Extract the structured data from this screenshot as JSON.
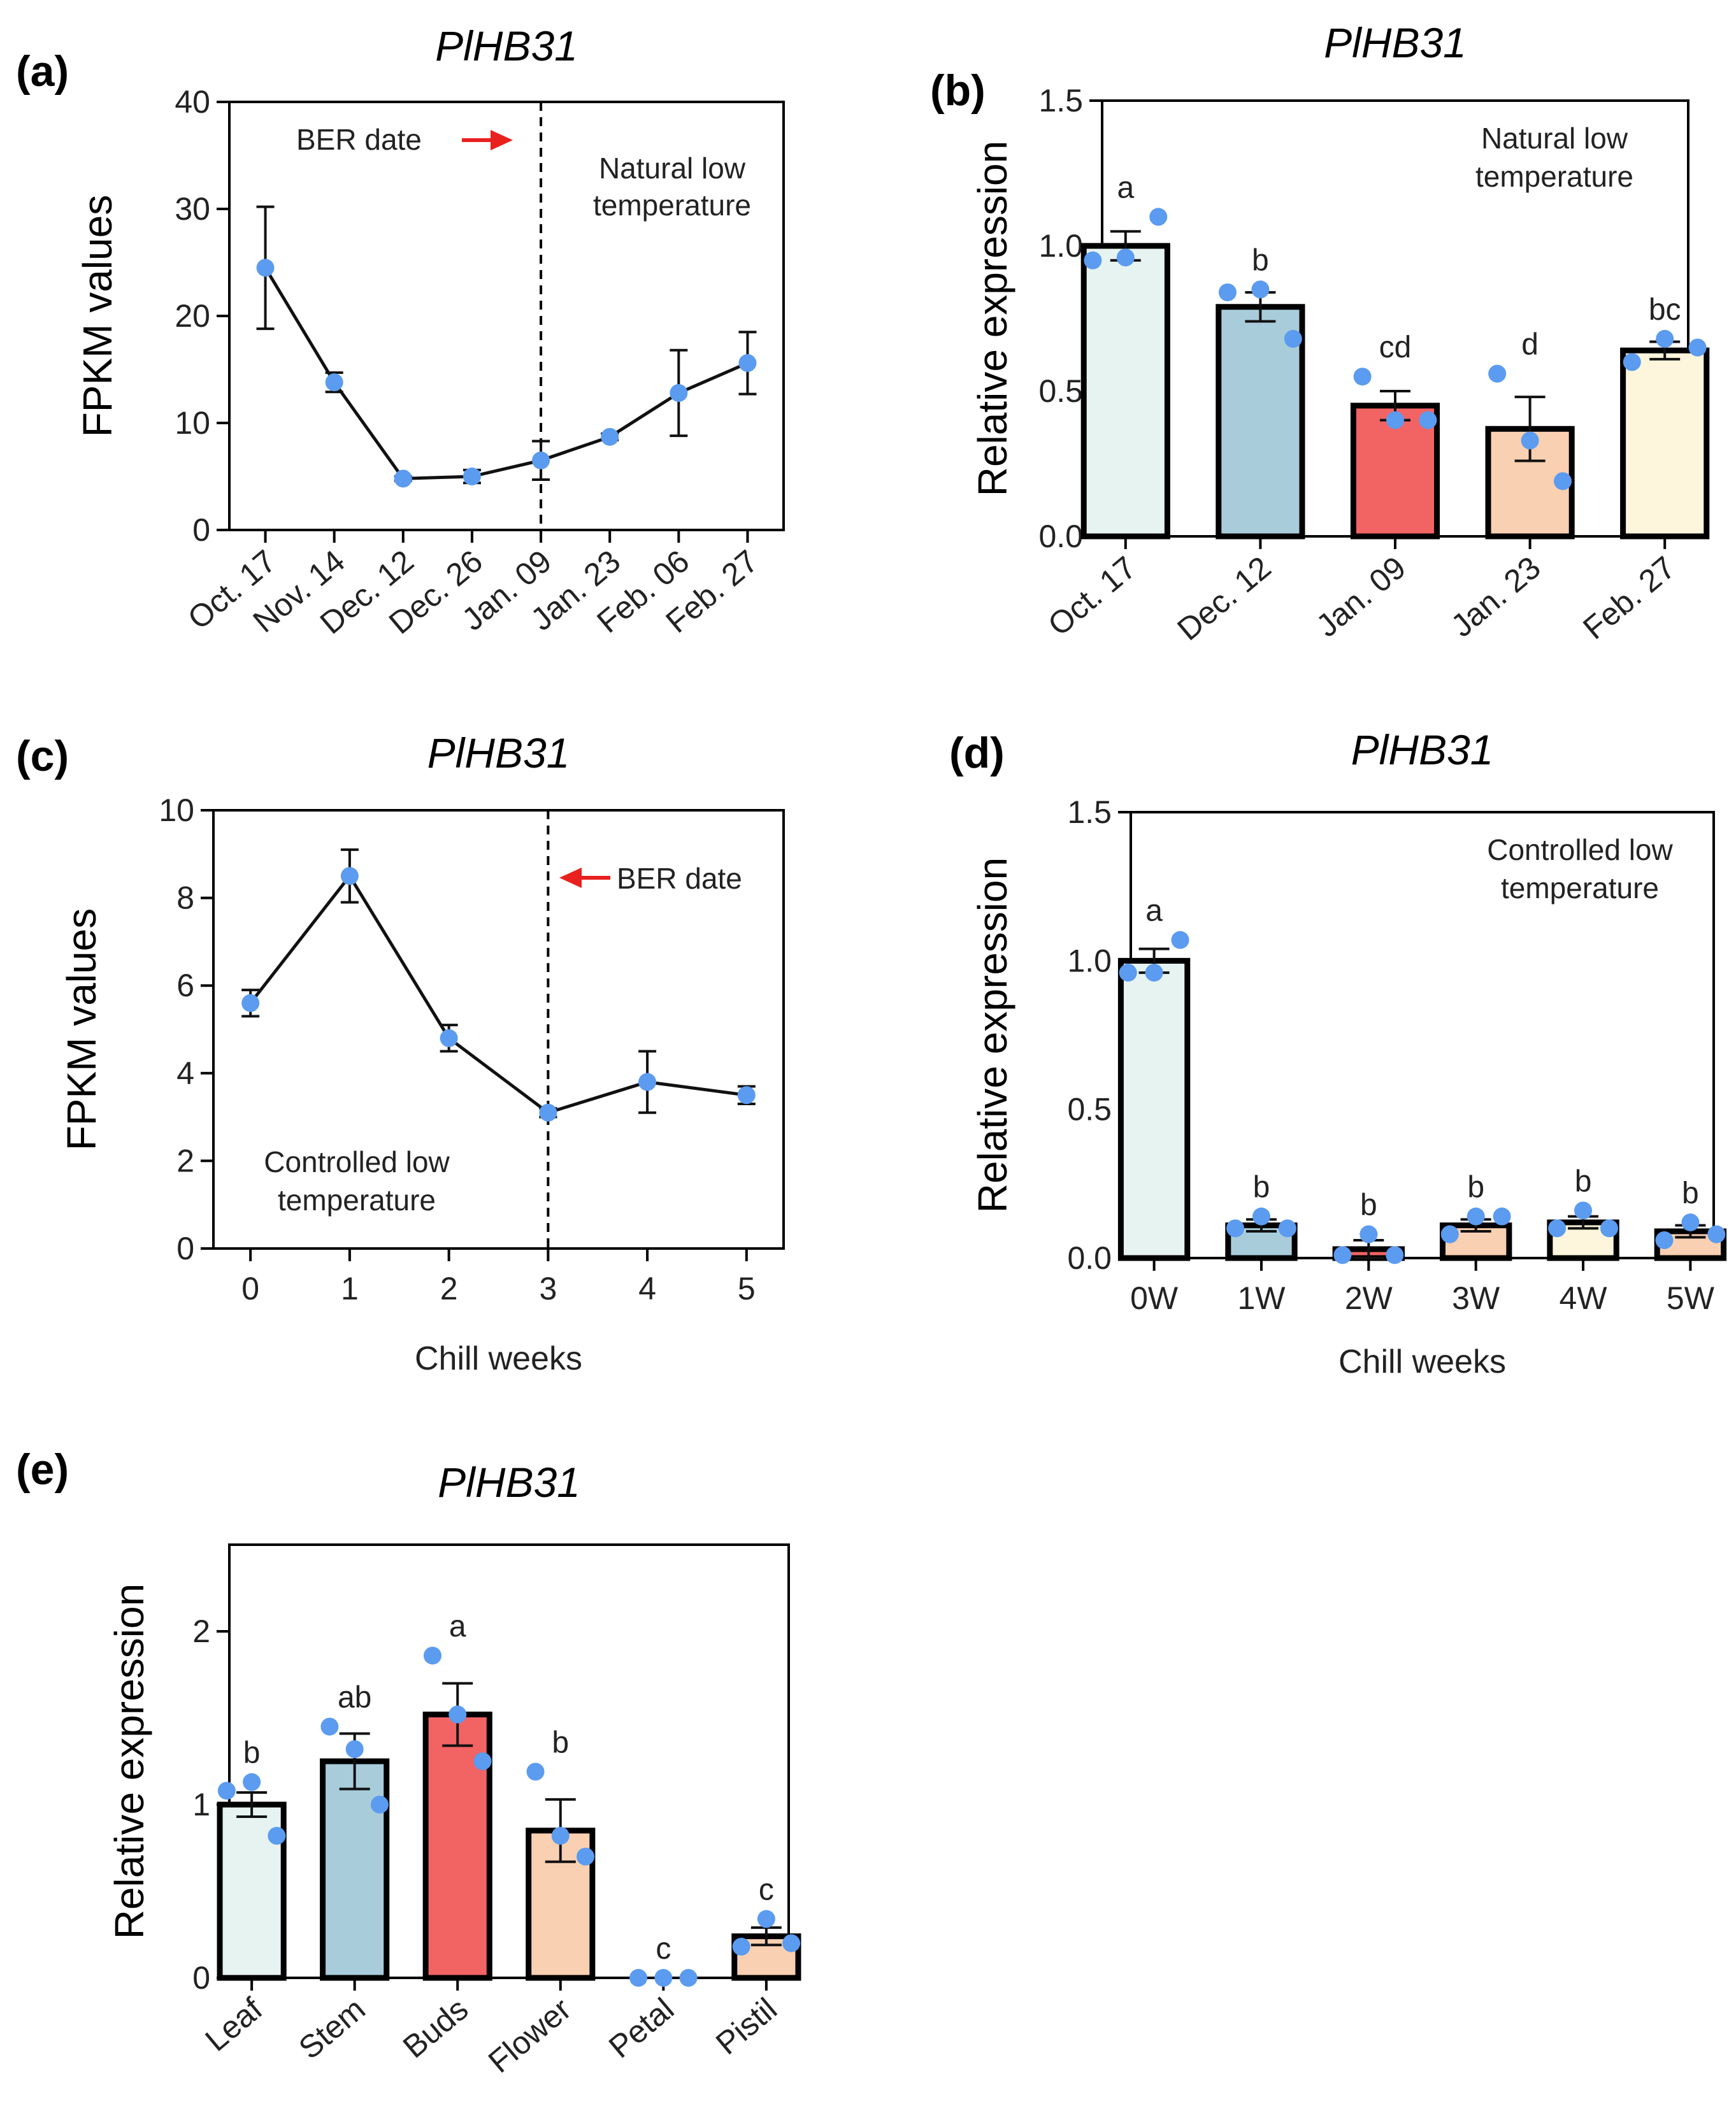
{
  "chart_data": [
    {
      "id": "a",
      "panel_label": "(a)",
      "type": "line",
      "title": "PlHB31",
      "ylabel": "FPKM values",
      "xlabel": "",
      "ylim": [
        0,
        40
      ],
      "yticks": [
        0,
        10,
        20,
        30,
        40
      ],
      "categories": [
        "Oct. 17",
        "Nov. 14",
        "Dec. 12",
        "Dec. 26",
        "Jan. 09",
        "Jan. 23",
        "Feb. 06",
        "Feb. 27"
      ],
      "values": [
        24.5,
        13.8,
        4.8,
        5.0,
        6.5,
        8.7,
        12.8,
        15.6
      ],
      "errors": [
        5.7,
        0.9,
        0.2,
        0.6,
        1.8,
        0.3,
        4.0,
        2.9
      ],
      "marker_color": "#5B9BF0",
      "vline_at_category": "Jan. 09",
      "annotations": {
        "ber_label": "BER date",
        "condition_line1": "Natural low",
        "condition_line2": "temperature"
      },
      "arrow_color": "#E8201E"
    },
    {
      "id": "b",
      "panel_label": "(b)",
      "type": "bar",
      "title": "PlHB31",
      "ylabel": "Relative expression",
      "xlabel": "",
      "ylim": [
        0,
        1.5
      ],
      "yticks": [
        "0.0",
        "0.5",
        "1.0",
        "1.5"
      ],
      "categories": [
        "Oct. 17",
        "Dec. 12",
        "Jan. 09",
        "Jan. 23",
        "Feb. 27"
      ],
      "values": [
        1.0,
        0.79,
        0.45,
        0.37,
        0.64
      ],
      "errors": [
        0.05,
        0.05,
        0.05,
        0.11,
        0.03
      ],
      "points": [
        [
          0.95,
          0.96,
          1.1
        ],
        [
          0.84,
          0.85,
          0.68
        ],
        [
          0.55,
          0.4,
          0.4
        ],
        [
          0.56,
          0.33,
          0.19
        ],
        [
          0.6,
          0.68,
          0.65
        ]
      ],
      "letters": [
        "a",
        "b",
        "cd",
        "d",
        "bc"
      ],
      "bar_colors": [
        "#E6F3F1",
        "#A8CCDA",
        "#F26364",
        "#F9D0B1",
        "#FDF6DD"
      ],
      "annotations": {
        "condition_line1": "Natural low",
        "condition_line2": "temperature"
      }
    },
    {
      "id": "c",
      "panel_label": "(c)",
      "type": "line",
      "title": "PlHB31",
      "ylabel": "FPKM values",
      "xlabel": "Chill weeks",
      "ylim": [
        0,
        10
      ],
      "yticks": [
        0,
        2,
        4,
        6,
        8,
        10
      ],
      "categories": [
        "0",
        "1",
        "2",
        "3",
        "4",
        "5"
      ],
      "values": [
        5.6,
        8.5,
        4.8,
        3.1,
        3.8,
        3.5
      ],
      "errors": [
        0.3,
        0.6,
        0.3,
        0.1,
        0.7,
        0.2
      ],
      "marker_color": "#5B9BF0",
      "vline_at_category": "3",
      "annotations": {
        "ber_label": "BER date",
        "condition_line1": "Controlled low",
        "condition_line2": "temperature"
      },
      "arrow_color": "#E8201E"
    },
    {
      "id": "d",
      "panel_label": "(d)",
      "type": "bar",
      "title": "PlHB31",
      "ylabel": "Relative expression",
      "xlabel": "Chill weeks",
      "ylim": [
        0,
        1.5
      ],
      "yticks": [
        "0.0",
        "0.5",
        "1.0",
        "1.5"
      ],
      "categories": [
        "0W",
        "1W",
        "2W",
        "3W",
        "4W",
        "5W"
      ],
      "values": [
        1.0,
        0.11,
        0.03,
        0.11,
        0.12,
        0.09
      ],
      "errors": [
        0.04,
        0.02,
        0.03,
        0.02,
        0.02,
        0.02
      ],
      "points": [
        [
          0.96,
          0.96,
          1.07
        ],
        [
          0.1,
          0.14,
          0.1
        ],
        [
          0.01,
          0.08,
          0.01
        ],
        [
          0.08,
          0.14,
          0.14
        ],
        [
          0.1,
          0.16,
          0.1
        ],
        [
          0.06,
          0.12,
          0.08
        ]
      ],
      "letters": [
        "a",
        "b",
        "b",
        "b",
        "b",
        "b"
      ],
      "bar_colors": [
        "#E6F3F1",
        "#A8CCDA",
        "#F26364",
        "#F9D0B1",
        "#FDF6DD",
        "#F9D0B1"
      ],
      "annotations": {
        "condition_line1": "Controlled low",
        "condition_line2": "temperature"
      }
    },
    {
      "id": "e",
      "panel_label": "(e)",
      "type": "bar",
      "title": "PlHB31",
      "ylabel": "Relative expression",
      "xlabel": "",
      "ylim": [
        0,
        2.5
      ],
      "yticks": [
        "0",
        "1",
        "2"
      ],
      "categories": [
        "Leaf",
        "Stem",
        "Buds",
        "Flower",
        "Petal",
        "Pistil"
      ],
      "values": [
        1.0,
        1.25,
        1.52,
        0.85,
        0.0,
        0.24
      ],
      "errors": [
        0.07,
        0.16,
        0.18,
        0.18,
        0.0,
        0.05
      ],
      "points": [
        [
          1.08,
          1.13,
          0.82
        ],
        [
          1.45,
          1.32,
          1.0
        ],
        [
          1.86,
          1.52,
          1.25
        ],
        [
          1.19,
          0.82,
          0.7
        ],
        [
          0.0,
          0.0,
          0.0
        ],
        [
          0.18,
          0.34,
          0.2
        ]
      ],
      "letters": [
        "b",
        "ab",
        "a",
        "b",
        "c",
        "c"
      ],
      "bar_colors": [
        "#E6F3F1",
        "#A8CCDA",
        "#F26364",
        "#F9D0B1",
        "#F9D0B1",
        "#F9D0B1"
      ],
      "annotations": {}
    }
  ]
}
